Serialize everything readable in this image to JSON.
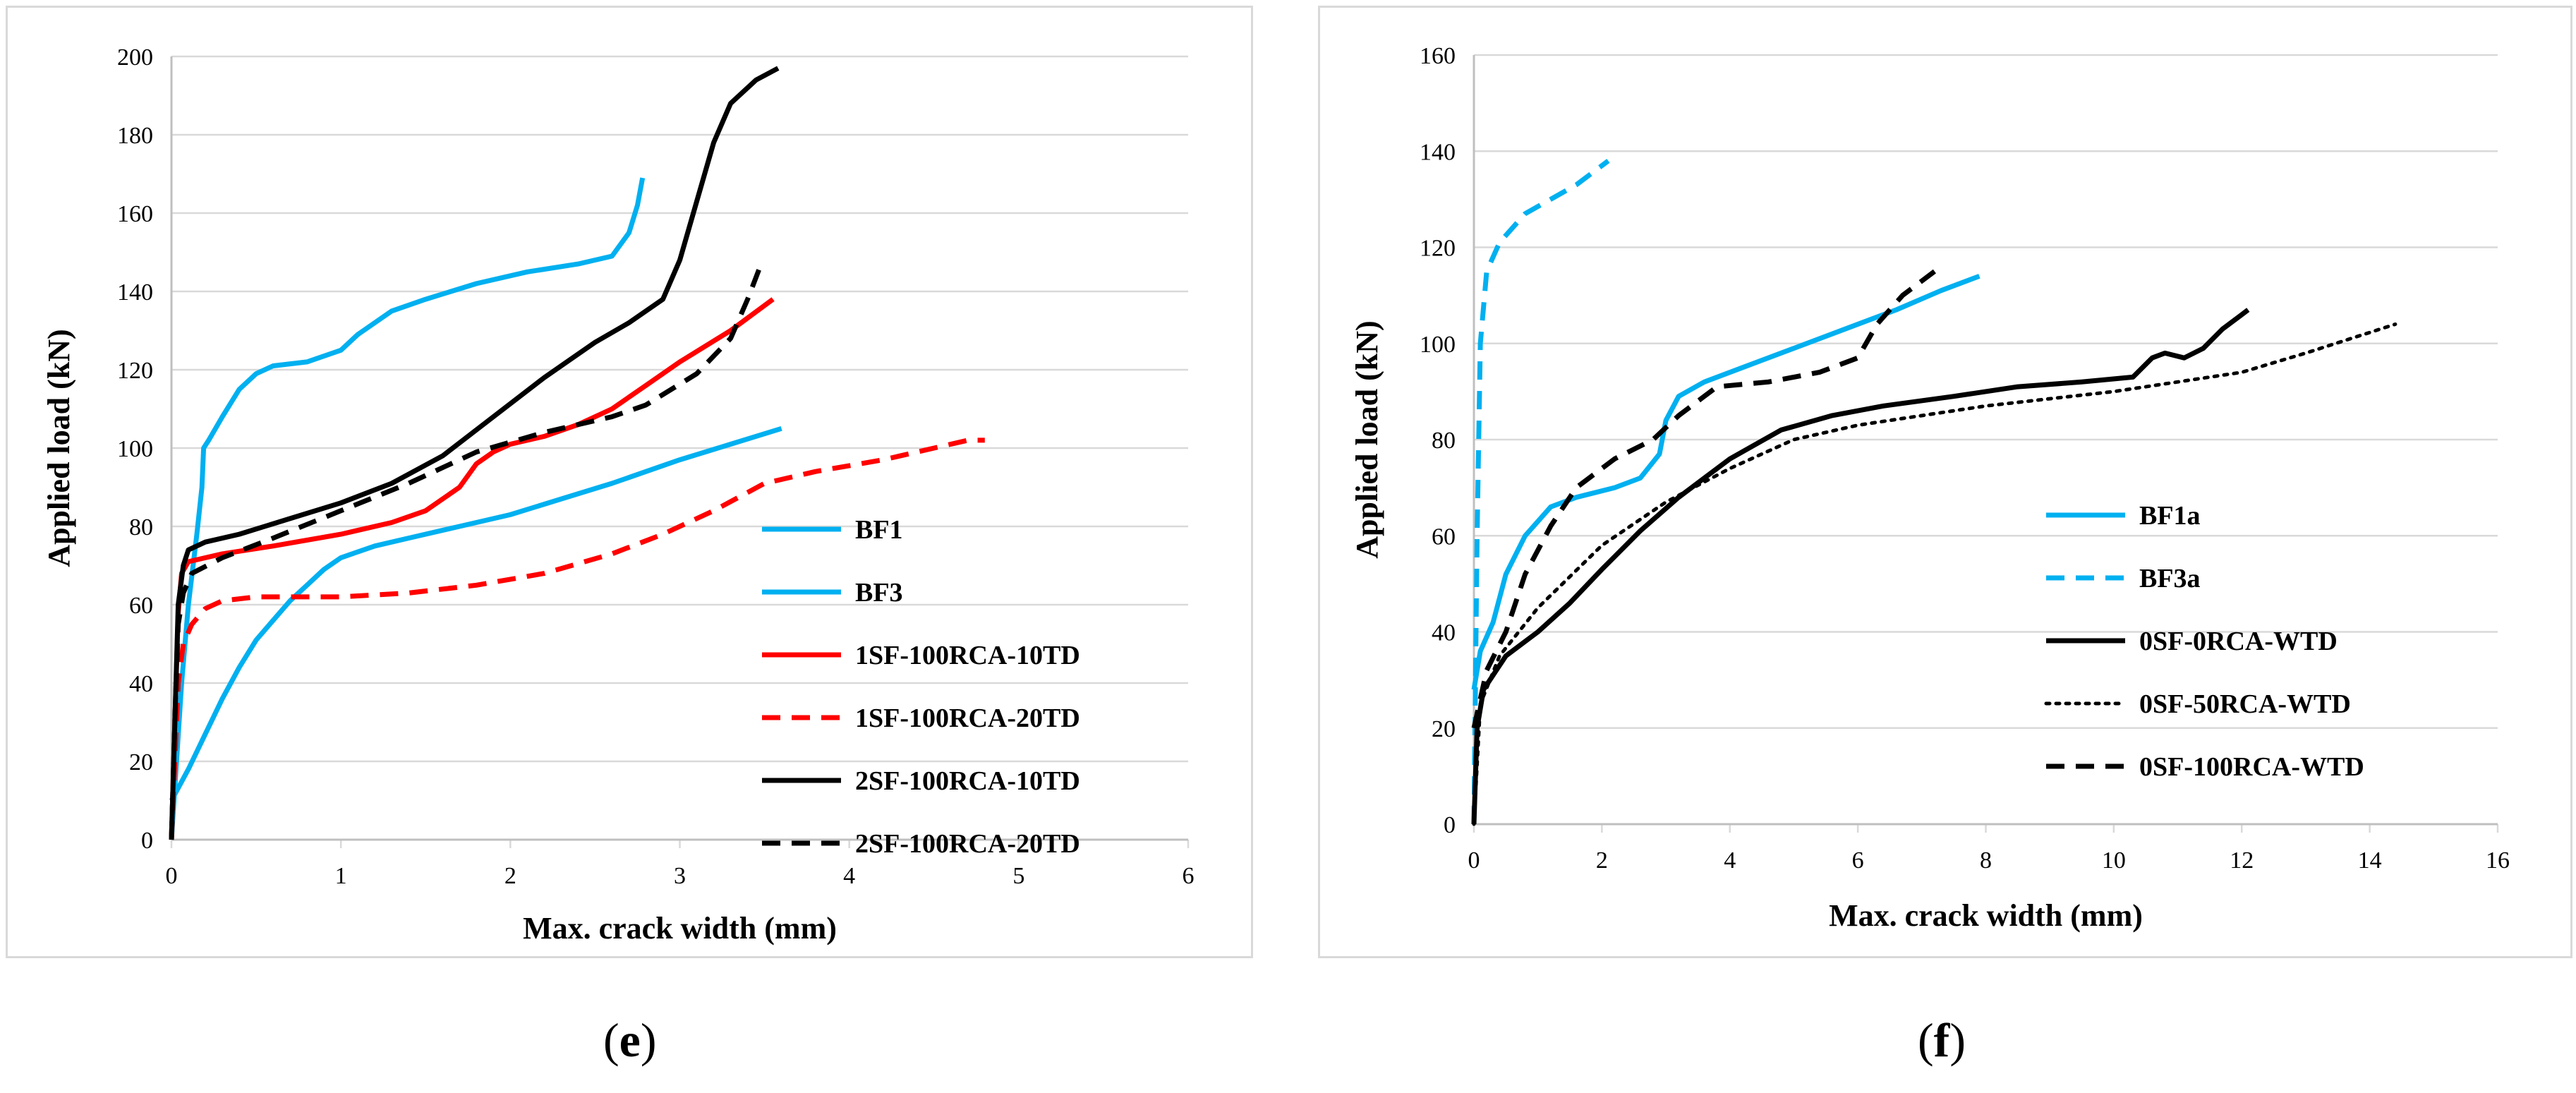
{
  "panels": {
    "e": {
      "label_open": "(",
      "label_letter": "e",
      "label_close": ")"
    },
    "f": {
      "label_open": "(",
      "label_letter": "f",
      "label_close": ")"
    }
  },
  "chart_data": [
    {
      "id": "e",
      "type": "line",
      "title": "",
      "xlabel": "Max. crack width (mm)",
      "ylabel": "Applied load (kN)",
      "xlim": [
        0,
        6
      ],
      "ylim": [
        0,
        200
      ],
      "xticks": [
        0,
        1,
        2,
        3,
        4,
        5,
        6
      ],
      "yticks": [
        0,
        20,
        40,
        60,
        80,
        100,
        120,
        140,
        160,
        180,
        200
      ],
      "grid": "horizontal",
      "legend_position": "lower-right",
      "series": [
        {
          "name": "BF1",
          "color": "#00b0f0",
          "dash": "solid",
          "points": [
            [
              0,
              10
            ],
            [
              0.1,
              18
            ],
            [
              0.2,
              27
            ],
            [
              0.3,
              36
            ],
            [
              0.4,
              44
            ],
            [
              0.5,
              51
            ],
            [
              0.6,
              56
            ],
            [
              0.7,
              61
            ],
            [
              0.8,
              65
            ],
            [
              0.9,
              69
            ],
            [
              1.0,
              72
            ],
            [
              1.2,
              75
            ],
            [
              1.4,
              77
            ],
            [
              1.7,
              80
            ],
            [
              2.0,
              83
            ],
            [
              2.3,
              87
            ],
            [
              2.6,
              91
            ],
            [
              3.0,
              97
            ],
            [
              3.3,
              101
            ],
            [
              3.6,
              105
            ]
          ]
        },
        {
          "name": "BF3",
          "color": "#00b0f0",
          "dash": "solid",
          "points": [
            [
              0,
              0
            ],
            [
              0.03,
              20
            ],
            [
              0.06,
              40
            ],
            [
              0.1,
              60
            ],
            [
              0.15,
              78
            ],
            [
              0.18,
              90
            ],
            [
              0.19,
              100
            ],
            [
              0.22,
              102
            ],
            [
              0.3,
              108
            ],
            [
              0.4,
              115
            ],
            [
              0.5,
              119
            ],
            [
              0.6,
              121
            ],
            [
              0.8,
              122
            ],
            [
              1.0,
              125
            ],
            [
              1.1,
              129
            ],
            [
              1.3,
              135
            ],
            [
              1.5,
              138
            ],
            [
              1.8,
              142
            ],
            [
              2.1,
              145
            ],
            [
              2.4,
              147
            ],
            [
              2.6,
              149
            ],
            [
              2.7,
              155
            ],
            [
              2.75,
              162
            ],
            [
              2.78,
              169
            ]
          ]
        },
        {
          "name": "1SF-100RCA-10TD",
          "color": "#ff0000",
          "dash": "solid",
          "points": [
            [
              0,
              0
            ],
            [
              0.02,
              30
            ],
            [
              0.04,
              58
            ],
            [
              0.06,
              68
            ],
            [
              0.1,
              71
            ],
            [
              0.3,
              73
            ],
            [
              0.6,
              75
            ],
            [
              1.0,
              78
            ],
            [
              1.3,
              81
            ],
            [
              1.5,
              84
            ],
            [
              1.7,
              90
            ],
            [
              1.8,
              96
            ],
            [
              1.9,
              99
            ],
            [
              2.0,
              101
            ],
            [
              2.2,
              103
            ],
            [
              2.4,
              106
            ],
            [
              2.6,
              110
            ],
            [
              2.8,
              116
            ],
            [
              3.0,
              122
            ],
            [
              3.3,
              130
            ],
            [
              3.55,
              138
            ]
          ]
        },
        {
          "name": "1SF-100RCA-20TD",
          "color": "#ff0000",
          "dash": "dashed",
          "points": [
            [
              0,
              0
            ],
            [
              0.02,
              20
            ],
            [
              0.04,
              40
            ],
            [
              0.07,
              50
            ],
            [
              0.12,
              55
            ],
            [
              0.2,
              59
            ],
            [
              0.3,
              61
            ],
            [
              0.5,
              62
            ],
            [
              1.0,
              62
            ],
            [
              1.4,
              63
            ],
            [
              1.8,
              65
            ],
            [
              2.2,
              68
            ],
            [
              2.6,
              73
            ],
            [
              2.9,
              78
            ],
            [
              3.2,
              84
            ],
            [
              3.5,
              91
            ],
            [
              3.8,
              94
            ],
            [
              4.2,
              97
            ],
            [
              4.5,
              100
            ],
            [
              4.7,
              102
            ],
            [
              4.8,
              102
            ]
          ]
        },
        {
          "name": "2SF-100RCA-10TD",
          "color": "#000000",
          "dash": "solid",
          "points": [
            [
              0,
              0
            ],
            [
              0.02,
              30
            ],
            [
              0.04,
              60
            ],
            [
              0.07,
              70
            ],
            [
              0.1,
              74
            ],
            [
              0.2,
              76
            ],
            [
              0.4,
              78
            ],
            [
              0.7,
              82
            ],
            [
              1.0,
              86
            ],
            [
              1.3,
              91
            ],
            [
              1.6,
              98
            ],
            [
              1.9,
              108
            ],
            [
              2.2,
              118
            ],
            [
              2.5,
              127
            ],
            [
              2.7,
              132
            ],
            [
              2.9,
              138
            ],
            [
              3.0,
              148
            ],
            [
              3.1,
              163
            ],
            [
              3.2,
              178
            ],
            [
              3.3,
              188
            ],
            [
              3.45,
              194
            ],
            [
              3.58,
              197
            ]
          ]
        },
        {
          "name": "2SF-100RCA-20TD",
          "color": "#000000",
          "dash": "dashed",
          "points": [
            [
              0,
              0
            ],
            [
              0.02,
              30
            ],
            [
              0.04,
              55
            ],
            [
              0.07,
              63
            ],
            [
              0.12,
              68
            ],
            [
              0.3,
              72
            ],
            [
              0.6,
              77
            ],
            [
              1.0,
              84
            ],
            [
              1.4,
              91
            ],
            [
              1.8,
              99
            ],
            [
              2.2,
              104
            ],
            [
              2.6,
              108
            ],
            [
              2.8,
              111
            ],
            [
              3.1,
              119
            ],
            [
              3.3,
              128
            ],
            [
              3.4,
              138
            ],
            [
              3.48,
              147
            ]
          ]
        }
      ],
      "legend_labels": [
        "BF1",
        "BF3",
        "1SF-100RCA-10TD",
        "1SF-100RCA-20TD",
        "2SF-100RCA-10TD",
        "2SF-100RCA-20TD"
      ]
    },
    {
      "id": "f",
      "type": "line",
      "title": "",
      "xlabel": "Max. crack width (mm)",
      "ylabel": "Applied load (kN)",
      "xlim": [
        0,
        16
      ],
      "ylim": [
        0,
        160
      ],
      "xticks": [
        0,
        2,
        4,
        6,
        8,
        10,
        12,
        14,
        16
      ],
      "yticks": [
        0,
        20,
        40,
        60,
        80,
        100,
        120,
        140,
        160
      ],
      "grid": "horizontal",
      "legend_position": "lower-right",
      "series": [
        {
          "name": "BF1a",
          "color": "#00b0f0",
          "dash": "solid",
          "points": [
            [
              0,
              28
            ],
            [
              0.1,
              36
            ],
            [
              0.3,
              42
            ],
            [
              0.5,
              52
            ],
            [
              0.8,
              60
            ],
            [
              1.2,
              66
            ],
            [
              1.6,
              68
            ],
            [
              2.2,
              70
            ],
            [
              2.6,
              72
            ],
            [
              2.9,
              77
            ],
            [
              3.0,
              84
            ],
            [
              3.2,
              89
            ],
            [
              3.6,
              92
            ],
            [
              4.2,
              95
            ],
            [
              5.0,
              99
            ],
            [
              5.8,
              103
            ],
            [
              6.6,
              107
            ],
            [
              7.3,
              111
            ],
            [
              7.9,
              114
            ]
          ]
        },
        {
          "name": "BF3a",
          "color": "#00b0f0",
          "dash": "dashed",
          "points": [
            [
              0,
              0
            ],
            [
              0.05,
              60
            ],
            [
              0.1,
              100
            ],
            [
              0.2,
              115
            ],
            [
              0.4,
              121
            ],
            [
              0.8,
              127
            ],
            [
              1.2,
              130
            ],
            [
              1.6,
              133
            ],
            [
              2.1,
              138
            ]
          ]
        },
        {
          "name": "0SF-0RCA-WTD",
          "color": "#000000",
          "dash": "solid",
          "points": [
            [
              0,
              0
            ],
            [
              0.05,
              20
            ],
            [
              0.15,
              28
            ],
            [
              0.5,
              35
            ],
            [
              1.0,
              40
            ],
            [
              1.5,
              46
            ],
            [
              2.0,
              53
            ],
            [
              2.6,
              61
            ],
            [
              3.2,
              68
            ],
            [
              4.0,
              76
            ],
            [
              4.8,
              82
            ],
            [
              5.6,
              85
            ],
            [
              6.4,
              87
            ],
            [
              7.5,
              89
            ],
            [
              8.5,
              91
            ],
            [
              9.5,
              92
            ],
            [
              10.3,
              93
            ],
            [
              10.6,
              97
            ],
            [
              10.8,
              98
            ],
            [
              11.1,
              97
            ],
            [
              11.4,
              99
            ],
            [
              11.7,
              103
            ],
            [
              12.1,
              107
            ]
          ]
        },
        {
          "name": "0SF-50RCA-WTD",
          "color": "#000000",
          "dash": "dotted",
          "points": [
            [
              0,
              0
            ],
            [
              0.1,
              25
            ],
            [
              0.4,
              35
            ],
            [
              1.0,
              45
            ],
            [
              2.0,
              58
            ],
            [
              3.0,
              67
            ],
            [
              4.0,
              74
            ],
            [
              5.0,
              80
            ],
            [
              6.0,
              83
            ],
            [
              8.0,
              87
            ],
            [
              10.0,
              90
            ],
            [
              12.0,
              94
            ],
            [
              13.0,
              98
            ],
            [
              14.4,
              104
            ]
          ]
        },
        {
          "name": "0SF-100RCA-WTD",
          "color": "#000000",
          "dash": "dashed",
          "points": [
            [
              0,
              20
            ],
            [
              0.2,
              32
            ],
            [
              0.5,
              40
            ],
            [
              0.8,
              52
            ],
            [
              1.2,
              62
            ],
            [
              1.6,
              70
            ],
            [
              2.2,
              76
            ],
            [
              2.8,
              80
            ],
            [
              3.2,
              85
            ],
            [
              3.8,
              91
            ],
            [
              4.6,
              92
            ],
            [
              5.4,
              94
            ],
            [
              6.0,
              97
            ],
            [
              6.3,
              104
            ],
            [
              6.7,
              110
            ],
            [
              7.2,
              115
            ]
          ]
        }
      ],
      "legend_labels": [
        "BF1a",
        "BF3a",
        "0SF-0RCA-WTD",
        "0SF-50RCA-WTD",
        "0SF-100RCA-WTD"
      ]
    }
  ]
}
